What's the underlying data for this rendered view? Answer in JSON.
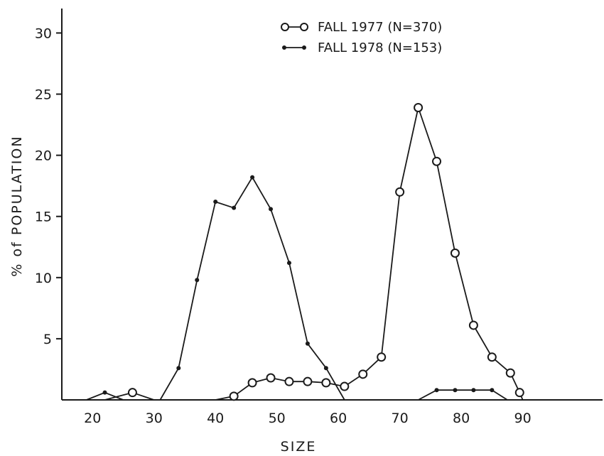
{
  "chart_data": {
    "type": "line",
    "title": "",
    "xlabel": "SIZE",
    "ylabel": "% of POPULATION",
    "xlim": [
      15,
      103
    ],
    "ylim": [
      0,
      32
    ],
    "xticks": [
      20,
      30,
      40,
      50,
      60,
      70,
      80,
      90
    ],
    "yticks": [
      5,
      10,
      15,
      20,
      25,
      30
    ],
    "grid": false,
    "legend_position": "top-center",
    "series": [
      {
        "name": "FALL 1977 (N=370)",
        "marker": "open-circle",
        "points": [
          [
            22,
            0
          ],
          [
            26.5,
            0.6
          ],
          [
            30,
            0
          ],
          [
            40,
            0
          ],
          [
            43,
            0.3
          ],
          [
            46,
            1.4
          ],
          [
            49,
            1.8
          ],
          [
            52,
            1.5
          ],
          [
            55,
            1.5
          ],
          [
            58,
            1.4
          ],
          [
            61,
            1.1
          ],
          [
            64,
            2.1
          ],
          [
            67,
            3.5
          ],
          [
            70,
            17
          ],
          [
            73,
            23.9
          ],
          [
            76,
            19.5
          ],
          [
            79,
            12
          ],
          [
            82,
            6.1
          ],
          [
            85,
            3.5
          ],
          [
            88,
            2.2
          ],
          [
            89.5,
            0.6
          ],
          [
            90,
            0
          ]
        ],
        "marked_x": [
          26.5,
          43,
          46,
          49,
          52,
          55,
          58,
          61,
          64,
          67,
          70,
          73,
          76,
          79,
          82,
          85,
          88,
          89.5
        ]
      },
      {
        "name": "FALL 1978 (N=153)",
        "marker": "filled-dot",
        "points": [
          [
            19,
            0
          ],
          [
            22,
            0.6
          ],
          [
            25,
            0
          ],
          [
            31,
            0
          ],
          [
            34,
            2.6
          ],
          [
            37,
            9.8
          ],
          [
            40,
            16.2
          ],
          [
            43,
            15.7
          ],
          [
            46,
            18.2
          ],
          [
            49,
            15.6
          ],
          [
            52,
            11.2
          ],
          [
            55,
            4.6
          ],
          [
            58,
            2.6
          ],
          [
            61,
            0
          ],
          [
            73,
            0
          ],
          [
            76,
            0.8
          ],
          [
            79,
            0.8
          ],
          [
            82,
            0.8
          ],
          [
            85,
            0.8
          ],
          [
            87.5,
            0
          ]
        ],
        "marked_x": [
          22,
          34,
          37,
          40,
          43,
          46,
          49,
          52,
          55,
          58,
          76,
          79,
          82,
          85
        ]
      }
    ]
  }
}
